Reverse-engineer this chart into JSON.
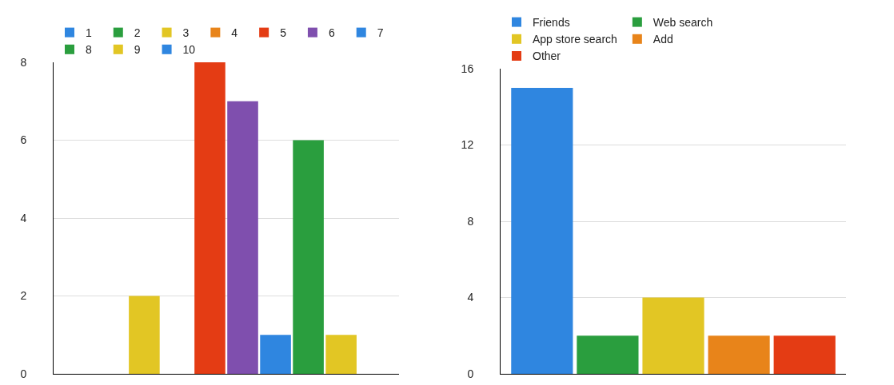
{
  "chart_data": [
    {
      "type": "bar",
      "categories": [
        null
      ],
      "series": [
        {
          "name": "1",
          "color": "#2f86e0",
          "values": [
            0
          ]
        },
        {
          "name": "2",
          "color": "#2a9e3e",
          "values": [
            0
          ]
        },
        {
          "name": "3",
          "color": "#e2c624",
          "values": [
            2
          ]
        },
        {
          "name": "4",
          "color": "#e8841a",
          "values": [
            0
          ]
        },
        {
          "name": "5",
          "color": "#e43c14",
          "values": [
            8
          ]
        },
        {
          "name": "6",
          "color": "#7f4fae",
          "values": [
            7
          ]
        },
        {
          "name": "7",
          "color": "#2f86e0",
          "values": [
            1
          ]
        },
        {
          "name": "8",
          "color": "#2a9e3e",
          "values": [
            6
          ]
        },
        {
          "name": "9",
          "color": "#e2c624",
          "values": [
            1
          ]
        },
        {
          "name": "10",
          "color": "#2f86e0",
          "values": [
            0
          ]
        }
      ],
      "ylim": [
        0,
        8
      ],
      "yticks": [
        0,
        2,
        4,
        6,
        8
      ],
      "grid": "y",
      "legend": "top"
    },
    {
      "type": "bar",
      "categories": [
        null
      ],
      "series": [
        {
          "name": "Friends",
          "color": "#2f86e0",
          "values": [
            15
          ]
        },
        {
          "name": "Web search",
          "color": "#2a9e3e",
          "values": [
            2
          ]
        },
        {
          "name": "App store search",
          "color": "#e2c624",
          "values": [
            4
          ]
        },
        {
          "name": "Add",
          "color": "#e8841a",
          "values": [
            2
          ]
        },
        {
          "name": "Other",
          "color": "#e43c14",
          "values": [
            2
          ]
        }
      ],
      "ylim": [
        0,
        16
      ],
      "yticks": [
        0,
        4,
        8,
        12,
        16
      ],
      "grid": "y",
      "legend": "top"
    }
  ]
}
